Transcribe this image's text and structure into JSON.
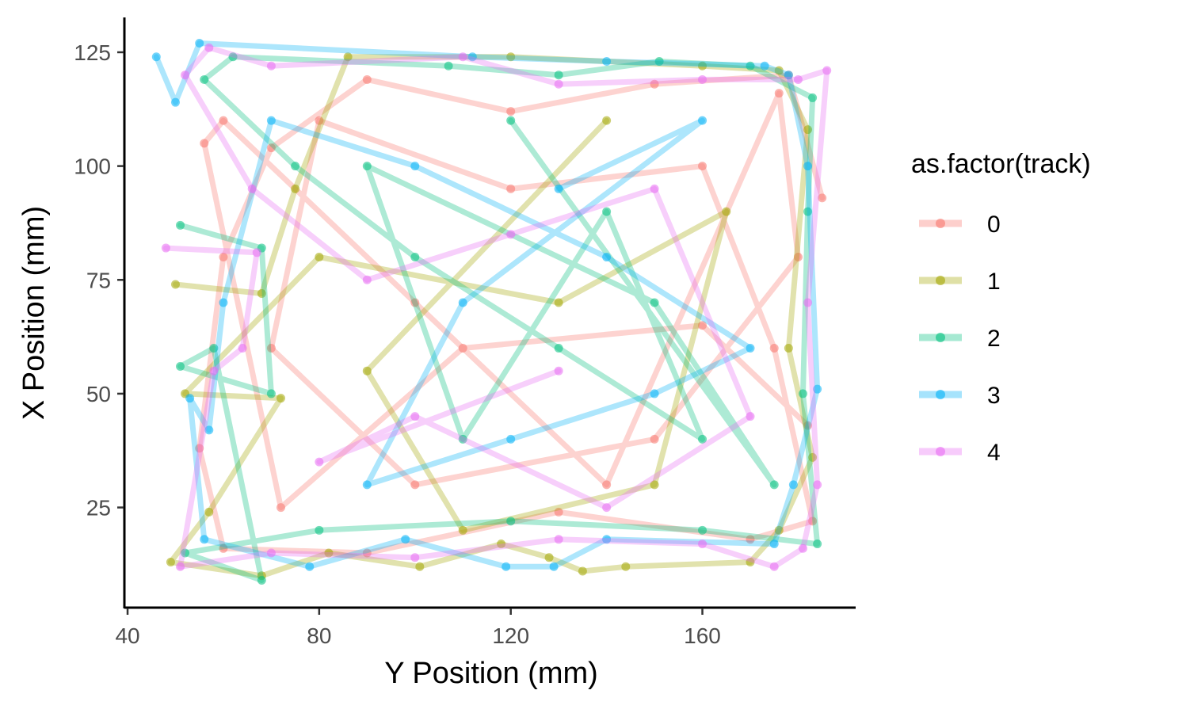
{
  "chart_data": {
    "type": "line",
    "title": "",
    "xlabel": "Y Position (mm)",
    "ylabel": "X Position (mm)",
    "xlim": [
      39.5,
      192
    ],
    "ylim": [
      3,
      133
    ],
    "x_ticks": [
      40,
      80,
      120,
      160
    ],
    "y_ticks": [
      25,
      50,
      75,
      100,
      125
    ],
    "grid": false,
    "legend": {
      "title": "as.factor(track)",
      "position": "right"
    },
    "series": [
      {
        "name": "0",
        "color": "#F8766D",
        "points": [
          [
            185,
            93
          ],
          [
            178,
            120
          ],
          [
            150,
            118
          ],
          [
            120,
            112
          ],
          [
            90,
            119
          ],
          [
            70,
            104
          ],
          [
            60,
            80
          ],
          [
            55,
            38
          ],
          [
            60,
            16
          ],
          [
            90,
            15
          ],
          [
            130,
            24
          ],
          [
            170,
            18
          ],
          [
            183,
            22
          ],
          [
            175,
            60
          ],
          [
            160,
            100
          ],
          [
            120,
            95
          ],
          [
            80,
            110
          ],
          [
            70,
            60
          ],
          [
            100,
            30
          ],
          [
            150,
            40
          ],
          [
            180,
            80
          ],
          [
            176,
            116
          ],
          [
            140,
            30
          ],
          [
            100,
            70
          ],
          [
            60,
            110
          ],
          [
            56,
            105
          ],
          [
            72,
            25
          ],
          [
            110,
            60
          ],
          [
            160,
            65
          ],
          [
            182,
            43
          ]
        ]
      },
      {
        "name": "1",
        "color": "#A3A500",
        "points": [
          [
            50,
            74
          ],
          [
            68,
            72
          ],
          [
            75,
            95
          ],
          [
            86,
            124
          ],
          [
            120,
            124
          ],
          [
            160,
            122
          ],
          [
            176,
            121
          ],
          [
            182,
            108
          ],
          [
            178,
            60
          ],
          [
            183,
            36
          ],
          [
            176,
            20
          ],
          [
            170,
            13
          ],
          [
            144,
            12
          ],
          [
            135,
            11
          ],
          [
            128,
            14
          ],
          [
            118,
            17
          ],
          [
            101,
            12
          ],
          [
            82,
            15
          ],
          [
            68,
            10
          ],
          [
            49,
            13
          ],
          [
            57,
            24
          ],
          [
            72,
            49
          ],
          [
            52,
            50
          ],
          [
            80,
            80
          ],
          [
            130,
            70
          ],
          [
            165,
            90
          ],
          [
            150,
            30
          ],
          [
            110,
            20
          ],
          [
            90,
            55
          ],
          [
            140,
            110
          ]
        ]
      },
      {
        "name": "2",
        "color": "#00BF7D",
        "points": [
          [
            51,
            87
          ],
          [
            68,
            82
          ],
          [
            70,
            50
          ],
          [
            51,
            56
          ],
          [
            58,
            60
          ],
          [
            68,
            9
          ],
          [
            52,
            15
          ],
          [
            80,
            20
          ],
          [
            120,
            22
          ],
          [
            160,
            20
          ],
          [
            184,
            17
          ],
          [
            181,
            50
          ],
          [
            182,
            90
          ],
          [
            183,
            115
          ],
          [
            170,
            122
          ],
          [
            151,
            123
          ],
          [
            130,
            120
          ],
          [
            107,
            122
          ],
          [
            62,
            124
          ],
          [
            56,
            119
          ],
          [
            75,
            100
          ],
          [
            100,
            80
          ],
          [
            130,
            60
          ],
          [
            160,
            40
          ],
          [
            140,
            90
          ],
          [
            110,
            40
          ],
          [
            90,
            100
          ],
          [
            150,
            70
          ],
          [
            175,
            30
          ],
          [
            120,
            110
          ]
        ]
      },
      {
        "name": "3",
        "color": "#00B0F6",
        "points": [
          [
            46,
            124
          ],
          [
            50,
            114
          ],
          [
            55,
            127
          ],
          [
            112,
            124
          ],
          [
            140,
            123
          ],
          [
            173,
            122
          ],
          [
            178,
            120
          ],
          [
            182,
            100
          ],
          [
            184,
            51
          ],
          [
            179,
            30
          ],
          [
            175,
            17
          ],
          [
            140,
            18
          ],
          [
            129,
            12
          ],
          [
            119,
            12
          ],
          [
            98,
            18
          ],
          [
            78,
            12
          ],
          [
            56,
            18
          ],
          [
            53,
            49
          ],
          [
            57,
            42
          ],
          [
            60,
            70
          ],
          [
            70,
            110
          ],
          [
            100,
            100
          ],
          [
            140,
            80
          ],
          [
            170,
            60
          ],
          [
            150,
            50
          ],
          [
            120,
            40
          ],
          [
            90,
            30
          ],
          [
            110,
            70
          ],
          [
            160,
            110
          ],
          [
            130,
            95
          ]
        ]
      },
      {
        "name": "4",
        "color": "#E76BF3",
        "points": [
          [
            48,
            82
          ],
          [
            67,
            81
          ],
          [
            64,
            60
          ],
          [
            58,
            55
          ],
          [
            51,
            12
          ],
          [
            70,
            15
          ],
          [
            100,
            14
          ],
          [
            130,
            18
          ],
          [
            160,
            17
          ],
          [
            175,
            12
          ],
          [
            181,
            16
          ],
          [
            184,
            30
          ],
          [
            182,
            70
          ],
          [
            186,
            121
          ],
          [
            180,
            119
          ],
          [
            160,
            119
          ],
          [
            130,
            118
          ],
          [
            110,
            124
          ],
          [
            70,
            122
          ],
          [
            57,
            126
          ],
          [
            52,
            120
          ],
          [
            66,
            95
          ],
          [
            90,
            75
          ],
          [
            120,
            85
          ],
          [
            150,
            95
          ],
          [
            170,
            45
          ],
          [
            140,
            25
          ],
          [
            100,
            45
          ],
          [
            80,
            35
          ],
          [
            130,
            55
          ]
        ]
      }
    ]
  }
}
